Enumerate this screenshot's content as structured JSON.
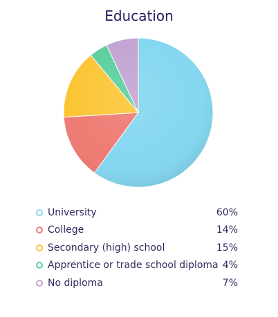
{
  "chart_data": {
    "type": "pie",
    "title": "Education",
    "categories": [
      "University",
      "College",
      "Secondary (high) school",
      "Apprentice or trade school diploma",
      "No diploma"
    ],
    "values": [
      60,
      14,
      15,
      4,
      7
    ],
    "value_labels": [
      "60%",
      "14%",
      "15%",
      "4%",
      "7%"
    ],
    "colors": [
      "#84d7f0",
      "#ee7b73",
      "#fcc535",
      "#5bcf9d",
      "#c2a3d2"
    ],
    "start_angle": "12 o'clock",
    "direction": "clockwise",
    "legend_placement": "bottom"
  }
}
